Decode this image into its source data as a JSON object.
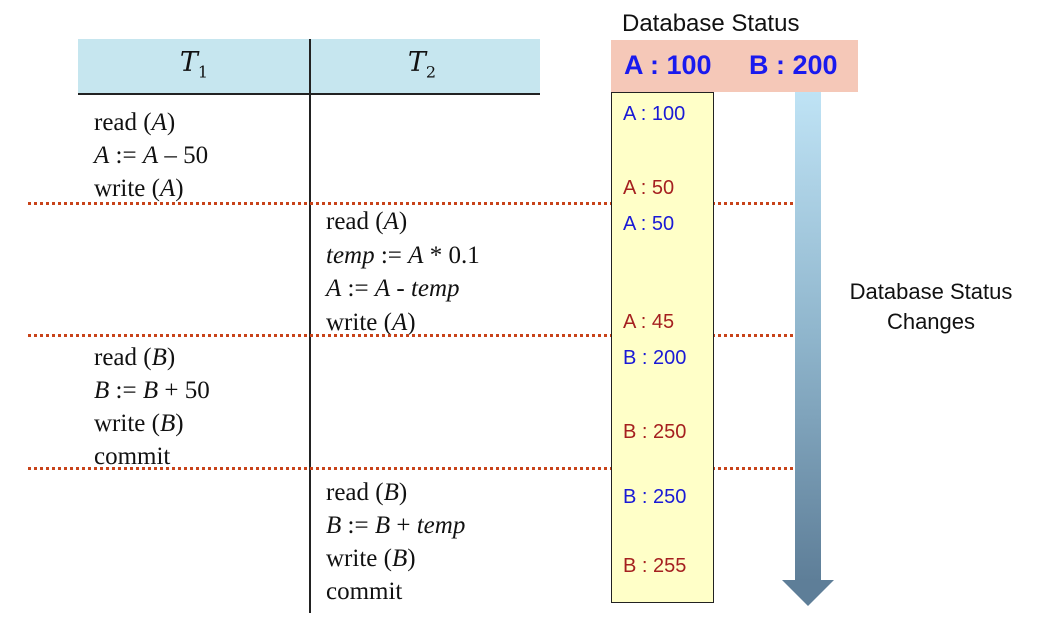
{
  "columns": {
    "t1": "T",
    "t1_sub": "1",
    "t2": "T",
    "t2_sub": "2"
  },
  "t1_block1": [
    "read (A)",
    "A := A – 50",
    "write (A)"
  ],
  "t2_block1": [
    "read (A)",
    "temp := A * 0.1",
    "A := A - temp",
    "write (A)"
  ],
  "t1_block2": [
    "read (B)",
    "B := B + 50",
    "write (B)",
    "commit"
  ],
  "t2_block2": [
    "read (B)",
    "B := B + temp",
    "write (B)",
    "commit"
  ],
  "database_status": {
    "title": "Database Status",
    "initial_a": "A : 100",
    "initial_b": "B : 200",
    "values": [
      {
        "text": "A : 100",
        "color": "#1a1ad6"
      },
      {
        "text": "A : 50",
        "color": "#a52020"
      },
      {
        "text": "A : 50",
        "color": "#1a1ad6"
      },
      {
        "text": "A : 45",
        "color": "#a52020"
      },
      {
        "text": "B : 200",
        "color": "#1a1ad6"
      },
      {
        "text": "B : 250",
        "color": "#a52020"
      },
      {
        "text": "B : 250",
        "color": "#1a1ad6"
      },
      {
        "text": "B : 255",
        "color": "#a52020"
      }
    ],
    "changes_label_line1": "Database Status",
    "changes_label_line2": "Changes"
  },
  "colors": {
    "header_bg": "#c6e6ef",
    "status_bar_bg": "#f5c8b8",
    "status_col_bg": "#ffffc8",
    "separator": "#c8431a"
  }
}
